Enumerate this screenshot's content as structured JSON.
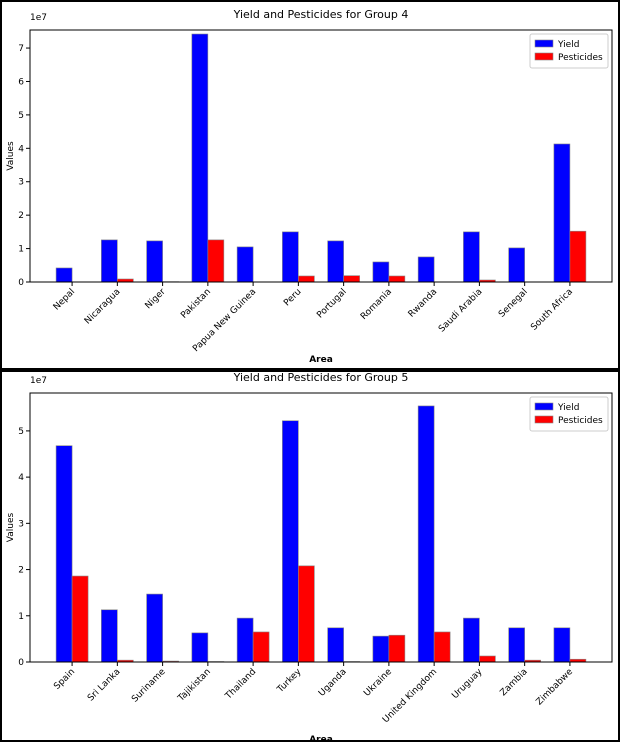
{
  "chart_data": [
    {
      "type": "bar",
      "title": "Yield and Pesticides for Group 4",
      "x_label": "Area",
      "y_label": "Values",
      "axis_scale": "1e7",
      "categories": [
        "Nepal",
        "Nicaragua",
        "Niger",
        "Pakistan",
        "Papua New Guinea",
        "Peru",
        "Portugal",
        "Romania",
        "Rwanda",
        "Saudi Arabia",
        "Senegal",
        "South Africa"
      ],
      "series": [
        {
          "name": "Yield",
          "color": "#0000ff",
          "values": [
            0.42,
            1.26,
            1.23,
            7.42,
            1.05,
            1.5,
            1.23,
            0.6,
            0.75,
            1.5,
            1.02,
            4.13
          ]
        },
        {
          "name": "Pesticides",
          "color": "#ff0000",
          "values": [
            0.0,
            0.09,
            0.01,
            1.26,
            0.0,
            0.18,
            0.19,
            0.18,
            0.0,
            0.06,
            0.0,
            1.52
          ]
        }
      ],
      "ylim": [
        0,
        7.54
      ],
      "yticks": [
        0,
        1,
        2,
        3,
        4,
        5,
        6,
        7
      ],
      "legend": "upper right"
    },
    {
      "type": "bar",
      "title": "Yield and Pesticides for Group 5",
      "x_label": "Area",
      "y_label": "Values",
      "axis_scale": "1e7",
      "categories": [
        "Spain",
        "Sri Lanka",
        "Suriname",
        "Tajikistan",
        "Thailand",
        "Turkey",
        "Uganda",
        "Ukraine",
        "United Kingdom",
        "Uruguay",
        "Zambia",
        "Zimbabwe"
      ],
      "series": [
        {
          "name": "Yield",
          "color": "#0000ff",
          "values": [
            4.68,
            1.13,
            1.47,
            0.63,
            0.95,
            5.22,
            0.74,
            0.56,
            5.54,
            0.95,
            0.74,
            0.74
          ]
        },
        {
          "name": "Pesticides",
          "color": "#ff0000",
          "values": [
            1.86,
            0.04,
            0.02,
            0.01,
            0.65,
            2.08,
            0.01,
            0.58,
            0.65,
            0.13,
            0.04,
            0.06
          ]
        }
      ],
      "ylim": [
        0,
        5.82
      ],
      "yticks": [
        0,
        1,
        2,
        3,
        4,
        5
      ],
      "legend": "upper right"
    }
  ]
}
